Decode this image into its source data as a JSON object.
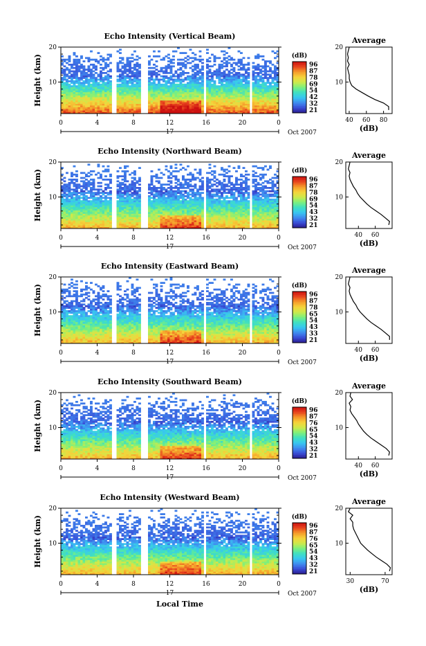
{
  "figure": {
    "x_axis_label": "Local Time",
    "date_label": "Oct 2007",
    "day_label": "17",
    "y_axis_label": "Height (km)",
    "colorbar_unit": "(dB)",
    "profile_title": "Average",
    "profile_xlabel": "(dB)"
  },
  "colors": {
    "colormap": [
      "#2a1b8f",
      "#3a4fd8",
      "#3f8ef0",
      "#38c8f0",
      "#40e0c0",
      "#7ff07a",
      "#cfe94a",
      "#f6d23a",
      "#f59a2a",
      "#e8441e",
      "#cc1010"
    ]
  },
  "chart_data": [
    {
      "type": "heatmap",
      "title": "Echo Intensity (Vertical Beam)",
      "xlabel": "",
      "ylabel": "Height (km)",
      "xlim": [
        0,
        24
      ],
      "ylim": [
        1,
        20
      ],
      "x_ticks": [
        "0",
        "4",
        "8",
        "12",
        "16",
        "20",
        "0"
      ],
      "x_tick_values": [
        0,
        4,
        8,
        12,
        16,
        20,
        24
      ],
      "y_ticks": [
        "20",
        "10"
      ],
      "y_tick_values": [
        20,
        10
      ],
      "data_gaps_hours": [
        [
          5.7,
          6.0
        ],
        [
          8.9,
          9.7
        ],
        [
          15.8,
          16.1
        ],
        [
          20.7,
          21.0
        ]
      ],
      "colorbar_ticks": [
        "96",
        "87",
        "78",
        "69",
        "54",
        "42",
        "32",
        "21"
      ],
      "profile": {
        "xlim": [
          36,
          90
        ],
        "x_ticks": [
          "40",
          "60",
          "80"
        ],
        "x_tick_values": [
          40,
          60,
          80
        ],
        "y_ticks": [
          "20",
          "10"
        ],
        "y_tick_values": [
          20,
          10
        ],
        "heights_km": [
          2,
          3,
          4,
          5,
          6,
          7,
          8,
          9,
          10,
          11,
          12,
          13,
          14,
          15,
          16,
          17,
          18,
          19,
          20
        ],
        "values_db": [
          86,
          86,
          80,
          70,
          62,
          55,
          48,
          43,
          41,
          40,
          40,
          39,
          38,
          40,
          38,
          39,
          38,
          39,
          40
        ]
      }
    },
    {
      "type": "heatmap",
      "title": "Echo Intensity (Northward Beam)",
      "xlabel": "",
      "ylabel": "Height (km)",
      "xlim": [
        0,
        24
      ],
      "ylim": [
        1,
        20
      ],
      "x_ticks": [
        "0",
        "4",
        "8",
        "12",
        "16",
        "20",
        "0"
      ],
      "x_tick_values": [
        0,
        4,
        8,
        12,
        16,
        20,
        24
      ],
      "y_ticks": [
        "20",
        "10"
      ],
      "y_tick_values": [
        20,
        10
      ],
      "data_gaps_hours": [
        [
          5.7,
          6.0
        ],
        [
          8.9,
          9.7
        ],
        [
          15.8,
          16.1
        ],
        [
          20.7,
          21.0
        ]
      ],
      "colorbar_ticks": [
        "96",
        "87",
        "78",
        "69",
        "54",
        "43",
        "32",
        "21"
      ],
      "profile": {
        "xlim": [
          25,
          80
        ],
        "x_ticks": [
          "40",
          "60"
        ],
        "x_tick_values": [
          40,
          60
        ],
        "y_ticks": [
          "20",
          "10"
        ],
        "y_tick_values": [
          20,
          10
        ],
        "heights_km": [
          2,
          3,
          4,
          5,
          6,
          7,
          8,
          9,
          10,
          11,
          12,
          13,
          14,
          15,
          16,
          17,
          18,
          19,
          20
        ],
        "values_db": [
          76,
          77,
          72,
          67,
          61,
          55,
          50,
          46,
          42,
          39,
          37,
          34,
          32,
          30,
          29,
          30,
          28,
          29,
          30
        ]
      }
    },
    {
      "type": "heatmap",
      "title": "Echo Intensity (Eastward Beam)",
      "xlabel": "",
      "ylabel": "Height (km)",
      "xlim": [
        0,
        24
      ],
      "ylim": [
        1,
        20
      ],
      "x_ticks": [
        "0",
        "4",
        "8",
        "12",
        "16",
        "20",
        "0"
      ],
      "x_tick_values": [
        0,
        4,
        8,
        12,
        16,
        20,
        24
      ],
      "y_ticks": [
        "20",
        "10"
      ],
      "y_tick_values": [
        20,
        10
      ],
      "data_gaps_hours": [
        [
          5.7,
          6.0
        ],
        [
          8.9,
          9.7
        ],
        [
          15.8,
          16.1
        ],
        [
          20.7,
          21.0
        ]
      ],
      "colorbar_ticks": [
        "96",
        "87",
        "78",
        "65",
        "54",
        "43",
        "33",
        "21"
      ],
      "profile": {
        "xlim": [
          25,
          80
        ],
        "x_ticks": [
          "40",
          "60"
        ],
        "x_tick_values": [
          40,
          60
        ],
        "y_ticks": [
          "20",
          "10"
        ],
        "y_tick_values": [
          20,
          10
        ],
        "heights_km": [
          2,
          3,
          4,
          5,
          6,
          7,
          8,
          9,
          10,
          11,
          12,
          13,
          14,
          15,
          16,
          17,
          18,
          19,
          20
        ],
        "values_db": [
          77,
          77,
          72,
          67,
          61,
          55,
          50,
          46,
          42,
          39,
          37,
          34,
          32,
          30,
          29,
          30,
          28,
          29,
          30
        ]
      }
    },
    {
      "type": "heatmap",
      "title": "Echo Intensity (Southward Beam)",
      "xlabel": "",
      "ylabel": "Height (km)",
      "xlim": [
        0,
        24
      ],
      "ylim": [
        1,
        20
      ],
      "x_ticks": [
        "0",
        "4",
        "8",
        "12",
        "16",
        "20",
        "0"
      ],
      "x_tick_values": [
        0,
        4,
        8,
        12,
        16,
        20,
        24
      ],
      "y_ticks": [
        "20",
        "10"
      ],
      "y_tick_values": [
        20,
        10
      ],
      "data_gaps_hours": [
        [
          5.7,
          6.0
        ],
        [
          8.9,
          9.7
        ],
        [
          15.8,
          16.1
        ],
        [
          20.7,
          21.0
        ]
      ],
      "colorbar_ticks": [
        "96",
        "87",
        "76",
        "65",
        "54",
        "43",
        "32",
        "21"
      ],
      "profile": {
        "xlim": [
          25,
          80
        ],
        "x_ticks": [
          "40",
          "60"
        ],
        "x_tick_values": [
          40,
          60
        ],
        "y_ticks": [
          "20",
          "10"
        ],
        "y_tick_values": [
          20,
          10
        ],
        "heights_km": [
          2,
          3,
          4,
          5,
          6,
          7,
          8,
          9,
          10,
          11,
          12,
          13,
          14,
          15,
          16,
          17,
          18,
          19,
          20
        ],
        "values_db": [
          76,
          77,
          73,
          67,
          61,
          55,
          50,
          46,
          43,
          40,
          38,
          35,
          32,
          30,
          31,
          29,
          33,
          30,
          31
        ]
      }
    },
    {
      "type": "heatmap",
      "title": "Echo Intensity (Westward Beam)",
      "xlabel": "Local Time",
      "ylabel": "Height (km)",
      "xlim": [
        0,
        24
      ],
      "ylim": [
        1,
        20
      ],
      "x_ticks": [
        "0",
        "4",
        "8",
        "12",
        "16",
        "20",
        "0"
      ],
      "x_tick_values": [
        0,
        4,
        8,
        12,
        16,
        20,
        24
      ],
      "y_ticks": [
        "20",
        "10"
      ],
      "y_tick_values": [
        20,
        10
      ],
      "data_gaps_hours": [
        [
          5.7,
          6.0
        ],
        [
          8.9,
          9.7
        ],
        [
          15.8,
          16.1
        ],
        [
          20.7,
          21.0
        ]
      ],
      "colorbar_ticks": [
        "96",
        "87",
        "76",
        "65",
        "54",
        "43",
        "32",
        "21"
      ],
      "profile": {
        "xlim": [
          25,
          78
        ],
        "x_ticks": [
          "30",
          "70"
        ],
        "x_tick_values": [
          30,
          70
        ],
        "y_ticks": [
          "20",
          "10"
        ],
        "y_tick_values": [
          20,
          10
        ],
        "heights_km": [
          2,
          3,
          4,
          5,
          6,
          7,
          8,
          9,
          10,
          11,
          12,
          13,
          14,
          15,
          16,
          17,
          18,
          19,
          20
        ],
        "values_db": [
          75,
          76,
          72,
          66,
          60,
          55,
          50,
          46,
          42,
          40,
          38,
          36,
          34,
          33,
          33,
          30,
          33,
          28,
          30
        ]
      }
    }
  ]
}
